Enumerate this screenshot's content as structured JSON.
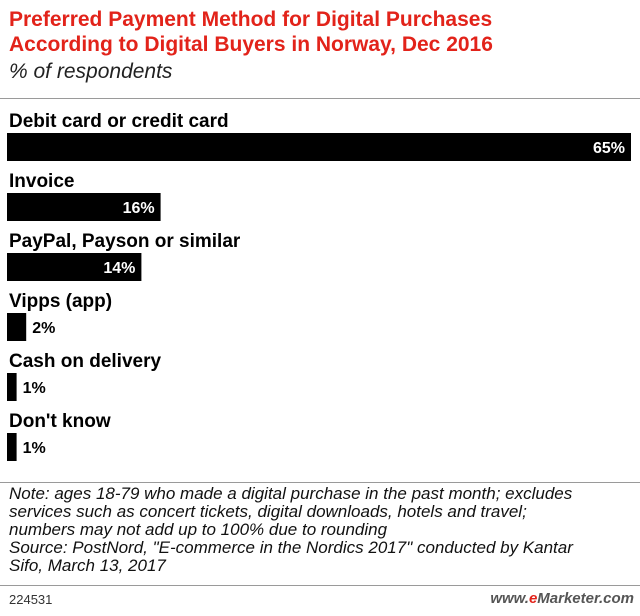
{
  "chart_data": {
    "type": "bar",
    "orientation": "horizontal",
    "title_lines": [
      "Preferred Payment Method for Digital Purchases",
      "According to Digital Buyers in Norway, Dec 2016"
    ],
    "subtitle": "% of respondents",
    "categories": [
      "Debit card or credit card",
      "Invoice",
      "PayPal, Payson or similar",
      "Vipps (app)",
      "Cash on delivery",
      "Don't know"
    ],
    "values": [
      65,
      16,
      14,
      2,
      1,
      1
    ],
    "value_labels": [
      "65%",
      "16%",
      "14%",
      "2%",
      "1%",
      "1%"
    ],
    "xlim": [
      0,
      65
    ],
    "grid": false,
    "bar_color": "#000000"
  },
  "note_lines": [
    "Note: ages 18-79 who made a digital purchase in the past month; excludes",
    "services such as concert tickets, digital downloads, hotels and travel;",
    "numbers may not add up to 100% due to rounding",
    "Source: PostNord, \"E-commerce in the Nordics 2017\" conducted by Kantar",
    "Sifo, March 13, 2017"
  ],
  "chart_id": "224531",
  "brand": {
    "prefix": "www.",
    "e": "e",
    "rest": "Marketer.com"
  },
  "colors": {
    "title": "#e2231a",
    "bar": "#000000"
  }
}
